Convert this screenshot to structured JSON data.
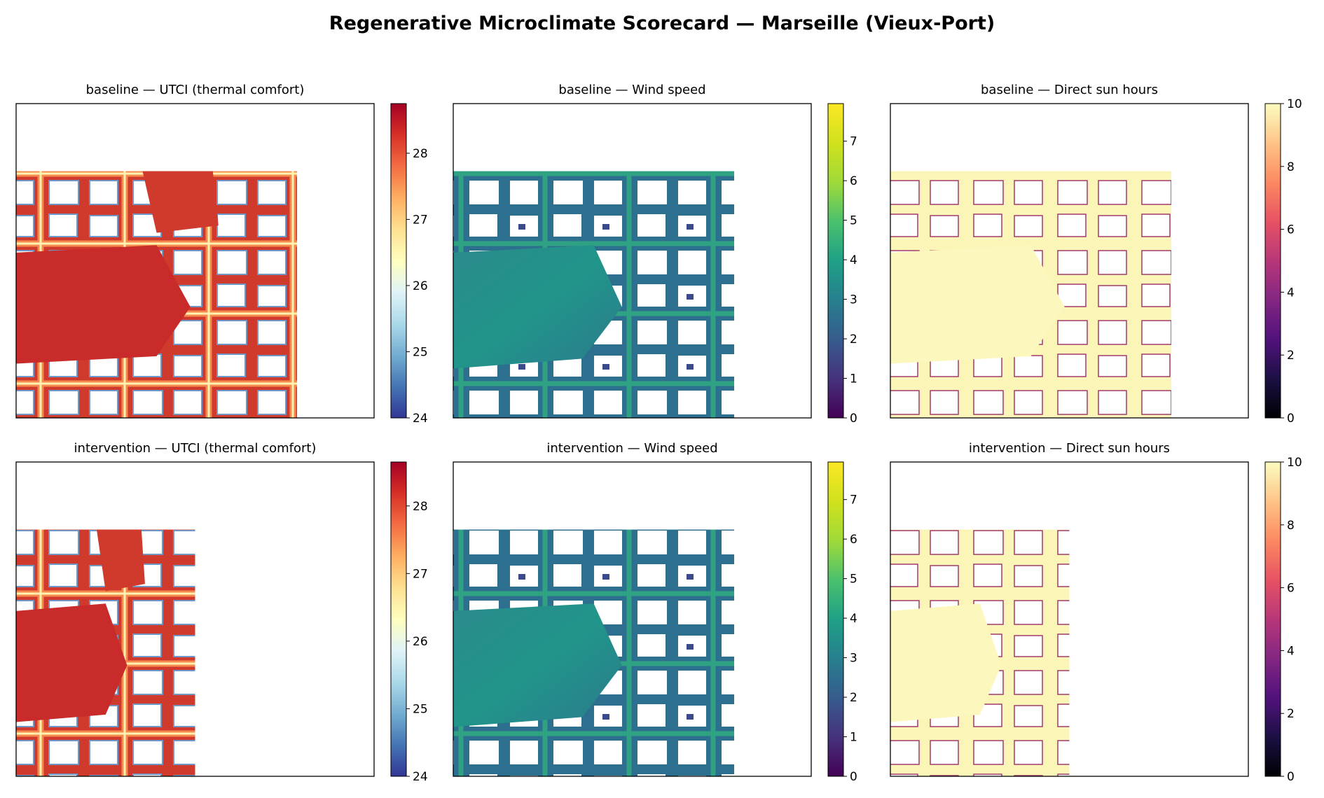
{
  "figure": {
    "title": "Regenerative Microclimate Scorecard — Marseille (Vieux-Port)"
  },
  "chart_data": [
    {
      "type": "heatmap",
      "scenario": "baseline",
      "metric": "UTCI (thermal comfort)",
      "title": "baseline — UTCI (thermal comfort)",
      "colormap": "RdYlBu_r",
      "colorbar": {
        "min": 24,
        "max": 28.75,
        "ticks": [
          24,
          25,
          26,
          27,
          28
        ]
      },
      "grid": false,
      "axes_ticks": false
    },
    {
      "type": "heatmap",
      "scenario": "baseline",
      "metric": "Wind speed",
      "title": "baseline — Wind speed",
      "colormap": "viridis",
      "colorbar": {
        "min": 0,
        "max": 7.95,
        "ticks": [
          0,
          1,
          2,
          3,
          4,
          5,
          6,
          7
        ]
      },
      "grid": false,
      "axes_ticks": false
    },
    {
      "type": "heatmap",
      "scenario": "baseline",
      "metric": "Direct sun hours",
      "title": "baseline — Direct sun hours",
      "colormap": "magma",
      "colorbar": {
        "min": 0,
        "max": 10,
        "ticks": [
          0,
          2,
          4,
          6,
          8,
          10
        ]
      },
      "grid": false,
      "axes_ticks": false
    },
    {
      "type": "heatmap",
      "scenario": "intervention",
      "metric": "UTCI (thermal comfort)",
      "title": "intervention — UTCI (thermal comfort)",
      "colormap": "RdYlBu_r",
      "colorbar": {
        "min": 24,
        "max": 28.65,
        "ticks": [
          24,
          25,
          26,
          27,
          28
        ]
      },
      "grid": false,
      "axes_ticks": false
    },
    {
      "type": "heatmap",
      "scenario": "intervention",
      "metric": "Wind speed",
      "title": "intervention — Wind speed",
      "colormap": "viridis",
      "colorbar": {
        "min": 0,
        "max": 7.95,
        "ticks": [
          0,
          1,
          2,
          3,
          4,
          5,
          6,
          7
        ]
      },
      "grid": false,
      "axes_ticks": false
    },
    {
      "type": "heatmap",
      "scenario": "intervention",
      "metric": "Direct sun hours",
      "title": "intervention — Direct sun hours",
      "colormap": "magma",
      "colorbar": {
        "min": 0,
        "max": 10,
        "ticks": [
          0,
          2,
          4,
          6,
          8,
          10
        ]
      },
      "grid": false,
      "axes_ticks": false
    }
  ]
}
